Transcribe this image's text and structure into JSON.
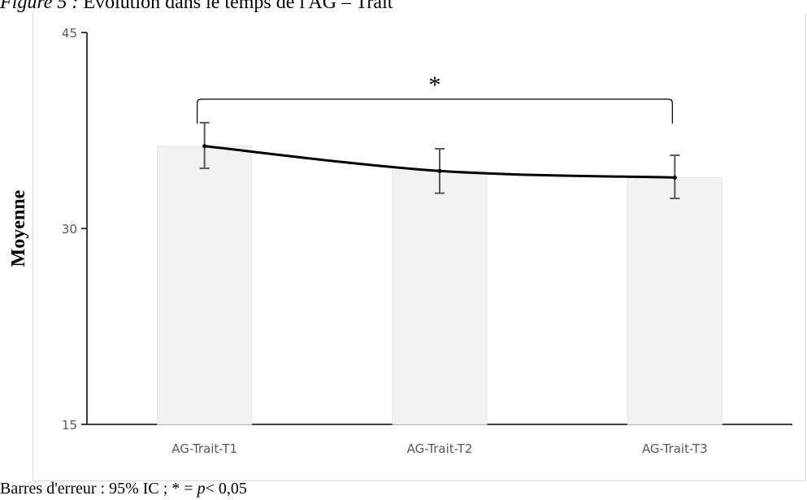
{
  "figure": {
    "label": "Figure 5 :",
    "title": "Evolution dans le temps de l'AG – Trait"
  },
  "note": {
    "prefix": "Barres d'erreur : 95% IC ; * = ",
    "p_symbol": "p",
    "suffix": "< 0,05"
  },
  "chart_data": {
    "type": "bar",
    "categories": [
      "AG-Trait-T1",
      "AG-Trait-T2",
      "AG-Trait-T3"
    ],
    "values": [
      36.3,
      34.4,
      33.9
    ],
    "error_low": [
      34.6,
      32.7,
      32.3
    ],
    "error_high": [
      38.1,
      36.1,
      35.6
    ],
    "trend_line": true,
    "ylabel": "Moyenne",
    "xlabel": "",
    "ylim": [
      15,
      45
    ],
    "yticks": [
      15,
      30,
      45
    ],
    "significance": {
      "symbol": "*",
      "from": "AG-Trait-T1",
      "to": "AG-Trait-T3"
    },
    "colors": {
      "bar": "#f2f2f2",
      "bar_edge": "#e6e6e6",
      "error_bar": "#595959",
      "line": "#000000",
      "axis": "#000000"
    },
    "grid": false
  }
}
